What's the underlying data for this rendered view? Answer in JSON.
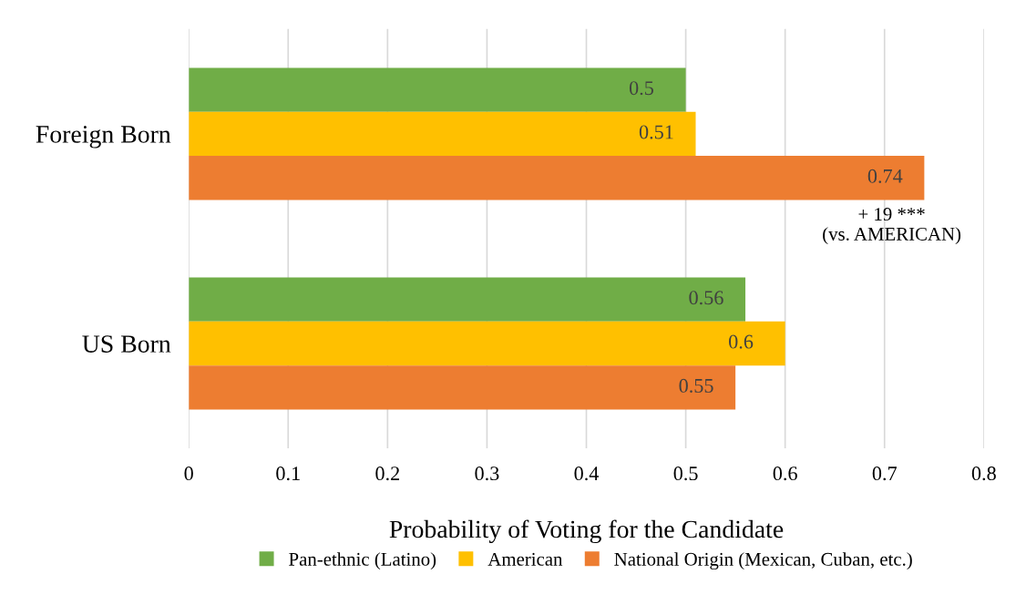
{
  "chart_data": {
    "type": "bar",
    "orientation": "horizontal",
    "categories": [
      "Foreign Born",
      "US Born"
    ],
    "series": [
      {
        "name": "Pan-ethnic (Latino)",
        "color": "#70ad47",
        "values": [
          0.5,
          0.56
        ]
      },
      {
        "name": "American",
        "color": "#ffc000",
        "values": [
          0.51,
          0.6
        ]
      },
      {
        "name": "National Origin (Mexican, Cuban, etc.)",
        "color": "#ed7d31",
        "values": [
          0.74,
          0.55
        ]
      }
    ],
    "xlabel": "Probability of Voting for the Candidate",
    "xlim": [
      0,
      0.8
    ],
    "xticks": [
      0,
      0.1,
      0.2,
      0.3,
      0.4,
      0.5,
      0.6,
      0.7,
      0.8
    ],
    "grid": "x",
    "legend": "bottom",
    "data_labels": true,
    "annotations": [
      "+ 19 ***\n(vs. AMERICAN)"
    ]
  }
}
